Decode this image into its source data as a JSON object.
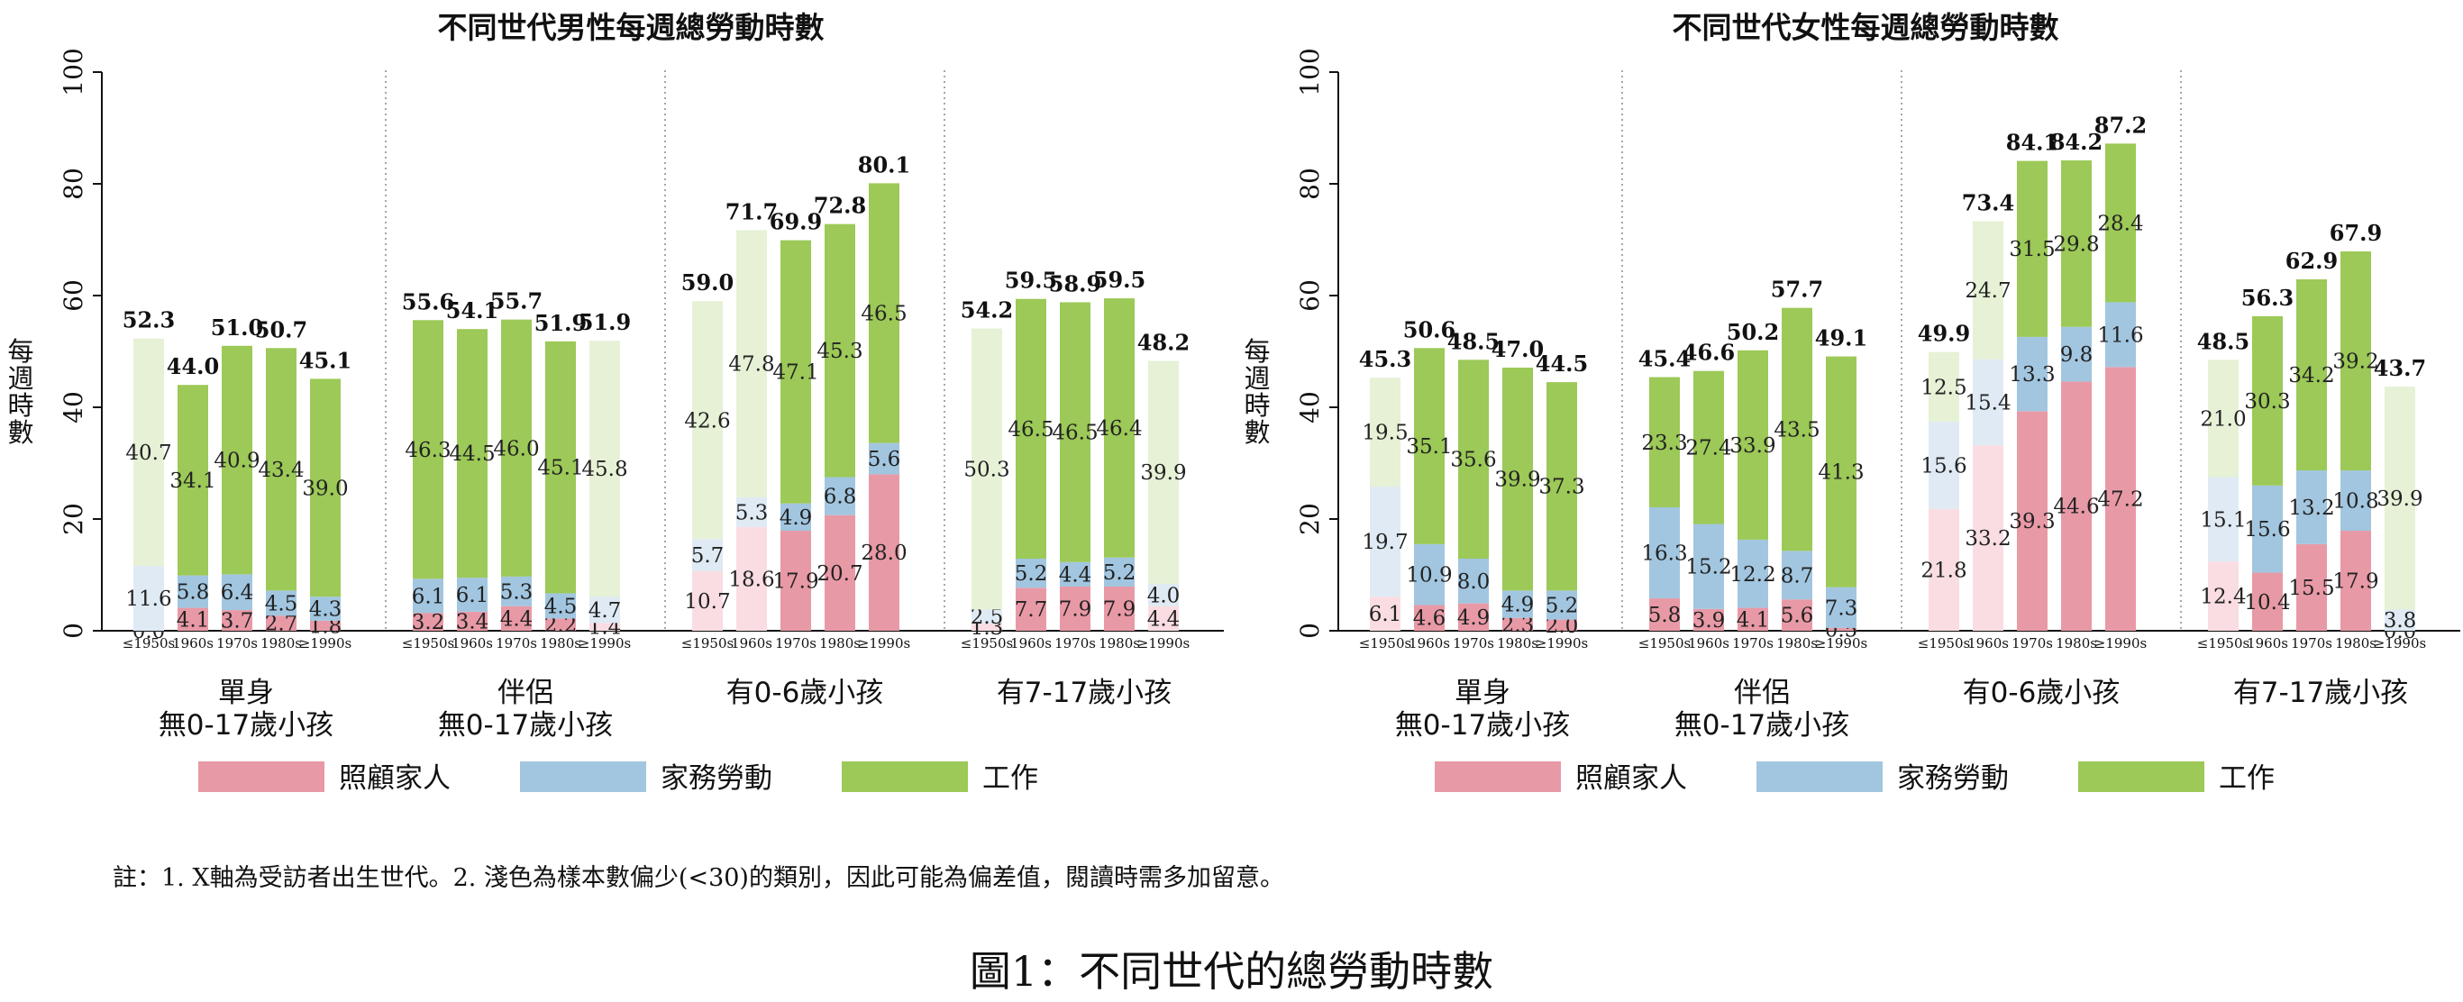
{
  "chart_data": [
    {
      "type": "bar",
      "stacked": true,
      "title": "不同世代男性每週總勞動時數",
      "ylabel": "每週時數",
      "ylim": [
        0,
        100
      ],
      "yticks": [
        0,
        20,
        40,
        60,
        80,
        100
      ],
      "legend": [
        "照顧家人",
        "家務勞動",
        "工作"
      ],
      "groups": [
        {
          "label": "單身\n無0-17歲小孩",
          "categories": [
            "≤1950s",
            "1960s",
            "1970s",
            "1980s",
            "≥1990s"
          ],
          "care": [
            0.0,
            4.1,
            3.7,
            2.7,
            1.8
          ],
          "housework": [
            11.6,
            5.8,
            6.4,
            4.5,
            4.3
          ],
          "work": [
            40.7,
            34.1,
            40.9,
            43.4,
            39.0
          ],
          "total": [
            "52.3",
            "44.0",
            "51.0",
            "50.7",
            "45.1"
          ],
          "light": [
            true,
            false,
            false,
            false,
            false
          ]
        },
        {
          "label": "伴侶\n無0-17歲小孩",
          "categories": [
            "≤1950s",
            "1960s",
            "1970s",
            "1980s",
            "≥1990s"
          ],
          "care": [
            3.2,
            3.4,
            4.4,
            2.2,
            1.4
          ],
          "housework": [
            6.1,
            6.1,
            5.3,
            4.5,
            4.7
          ],
          "work": [
            46.3,
            44.5,
            46.0,
            45.1,
            45.8
          ],
          "total": [
            "55.6",
            "54.1",
            "55.7",
            "51.9",
            "51.9"
          ],
          "light": [
            false,
            false,
            false,
            false,
            true
          ]
        },
        {
          "label": "有0-6歲小孩",
          "categories": [
            "≤1950s",
            "1960s",
            "1970s",
            "1980s",
            "≥1990s"
          ],
          "care": [
            10.7,
            18.6,
            17.9,
            20.7,
            28.0
          ],
          "housework": [
            5.7,
            5.3,
            4.9,
            6.8,
            5.6
          ],
          "work": [
            42.6,
            47.8,
            47.1,
            45.3,
            46.5
          ],
          "total": [
            "59.0",
            "71.7",
            "69.9",
            "72.8",
            "80.1"
          ],
          "light": [
            true,
            true,
            false,
            false,
            false
          ]
        },
        {
          "label": "有7-17歲小孩",
          "categories": [
            "≤1950s",
            "1960s",
            "1970s",
            "1980s",
            "≥1990s"
          ],
          "care": [
            1.3,
            7.7,
            7.9,
            7.9,
            4.4
          ],
          "housework": [
            2.5,
            5.2,
            4.4,
            5.2,
            4.0
          ],
          "work": [
            50.3,
            46.5,
            46.5,
            46.4,
            39.9
          ],
          "total": [
            "54.2",
            "59.5",
            "58.9",
            "59.5",
            "48.2"
          ],
          "light": [
            true,
            false,
            false,
            false,
            true
          ]
        }
      ]
    },
    {
      "type": "bar",
      "stacked": true,
      "title": "不同世代女性每週總勞動時數",
      "ylabel": "每週時數",
      "ylim": [
        0,
        100
      ],
      "yticks": [
        0,
        20,
        40,
        60,
        80,
        100
      ],
      "legend": [
        "照顧家人",
        "家務勞動",
        "工作"
      ],
      "groups": [
        {
          "label": "單身\n無0-17歲小孩",
          "categories": [
            "≤1950s",
            "1960s",
            "1970s",
            "1980s",
            "≥1990s"
          ],
          "care": [
            6.1,
            4.6,
            4.9,
            2.3,
            2.0
          ],
          "housework": [
            19.7,
            10.9,
            8.0,
            4.9,
            5.2
          ],
          "work": [
            19.5,
            35.1,
            35.6,
            39.9,
            37.3
          ],
          "total": [
            "45.3",
            "50.6",
            "48.5",
            "47.0",
            "44.5"
          ],
          "light": [
            true,
            false,
            false,
            false,
            false
          ]
        },
        {
          "label": "伴侶\n無0-17歲小孩",
          "categories": [
            "≤1950s",
            "1960s",
            "1970s",
            "1980s",
            "≥1990s"
          ],
          "care": [
            5.8,
            3.9,
            4.1,
            5.6,
            0.5
          ],
          "housework": [
            16.3,
            15.2,
            12.2,
            8.7,
            7.3
          ],
          "work": [
            23.3,
            27.4,
            33.9,
            43.5,
            41.3
          ],
          "total": [
            "45.4",
            "46.6",
            "50.2",
            "57.7",
            "49.1"
          ],
          "light": [
            false,
            false,
            false,
            false,
            false
          ]
        },
        {
          "label": "有0-6歲小孩",
          "categories": [
            "≤1950s",
            "1960s",
            "1970s",
            "1980s",
            "≥1990s"
          ],
          "care": [
            21.8,
            33.2,
            39.3,
            44.6,
            47.2
          ],
          "housework": [
            15.6,
            15.4,
            13.3,
            9.8,
            11.6
          ],
          "work": [
            12.5,
            24.7,
            31.5,
            29.8,
            28.4
          ],
          "total": [
            "49.9",
            "73.4",
            "84.1",
            "84.2",
            "87.2"
          ],
          "light": [
            true,
            true,
            false,
            false,
            false
          ]
        },
        {
          "label": "有7-17歲小孩",
          "categories": [
            "≤1950s",
            "1960s",
            "1970s",
            "1980s",
            "≥1990s"
          ],
          "care": [
            12.4,
            10.4,
            15.5,
            17.9,
            0.0
          ],
          "housework": [
            15.1,
            15.6,
            13.2,
            10.8,
            3.8
          ],
          "work": [
            21.0,
            30.3,
            34.2,
            39.2,
            39.9
          ],
          "total": [
            "48.5",
            "56.3",
            "62.9",
            "67.9",
            "43.7"
          ],
          "light": [
            true,
            false,
            false,
            false,
            true
          ]
        }
      ]
    }
  ],
  "colors": {
    "care": "#e899a6",
    "housework": "#a2c6e0",
    "work": "#9cc957",
    "care_light": "#f9dde2",
    "housework_light": "#dfeaf4",
    "work_light": "#e6f1d6"
  },
  "note": "註：1. X軸為受訪者出生世代。2. 淺色為樣本數偏少(<30)的類別，因此可能為偏差值，閱讀時需多加留意。",
  "caption": "圖1：不同世代的總勞動時數"
}
